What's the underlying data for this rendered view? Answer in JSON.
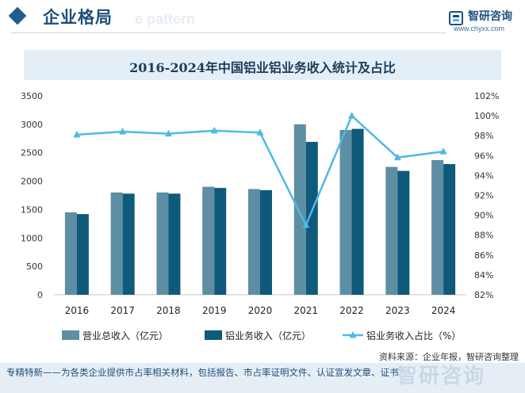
{
  "header": {
    "section_title": "企业格局",
    "ghost_text": "e pattern",
    "logo_name": "智研咨询",
    "logo_url": "www.chyxx.com"
  },
  "colors": {
    "revenue_total": "#5e8ea3",
    "aluminum_revenue": "#0f5a7a",
    "share_line": "#4fb8e6",
    "accent": "#1e4f7a"
  },
  "chart_data": {
    "type": "bar",
    "title": "2016-2024年中国铝业铝业务收入统计及占比",
    "categories": [
      "2016",
      "2017",
      "2018",
      "2019",
      "2020",
      "2021",
      "2022",
      "2023",
      "2024"
    ],
    "series": [
      {
        "name": "营业总收入（亿元）",
        "type": "bar",
        "axis": "left",
        "values": [
          1450,
          1800,
          1800,
          1900,
          1860,
          3000,
          2900,
          2250,
          2370
        ]
      },
      {
        "name": "铝业务收入（亿元）",
        "type": "bar",
        "axis": "left",
        "values": [
          1420,
          1780,
          1780,
          1880,
          1840,
          2690,
          2920,
          2180,
          2300
        ]
      },
      {
        "name": "铝业务收入占比（%）",
        "type": "line",
        "axis": "right",
        "values": [
          98.1,
          98.4,
          98.2,
          98.5,
          98.3,
          89.0,
          100.0,
          95.8,
          96.4
        ]
      }
    ],
    "left_axis": {
      "ylim": [
        0,
        3500
      ],
      "ticks": [
        "0",
        "500",
        "1000",
        "1500",
        "2000",
        "2500",
        "3000",
        "3500"
      ]
    },
    "right_axis": {
      "ylim": [
        82,
        102
      ],
      "ticks": [
        "82%",
        "84%",
        "86%",
        "88%",
        "90%",
        "92%",
        "94%",
        "96%",
        "98%",
        "100%",
        "102%"
      ]
    },
    "legend_position": "bottom",
    "grid": false
  },
  "source_text": "资料来源：企业年报，智研咨询整理",
  "footer_text": "专精特新——为各类企业提供市占率相关材料，包括报告、市占率证明文件、认证宣发文章、证书",
  "footer_ghost": "智研咨询"
}
